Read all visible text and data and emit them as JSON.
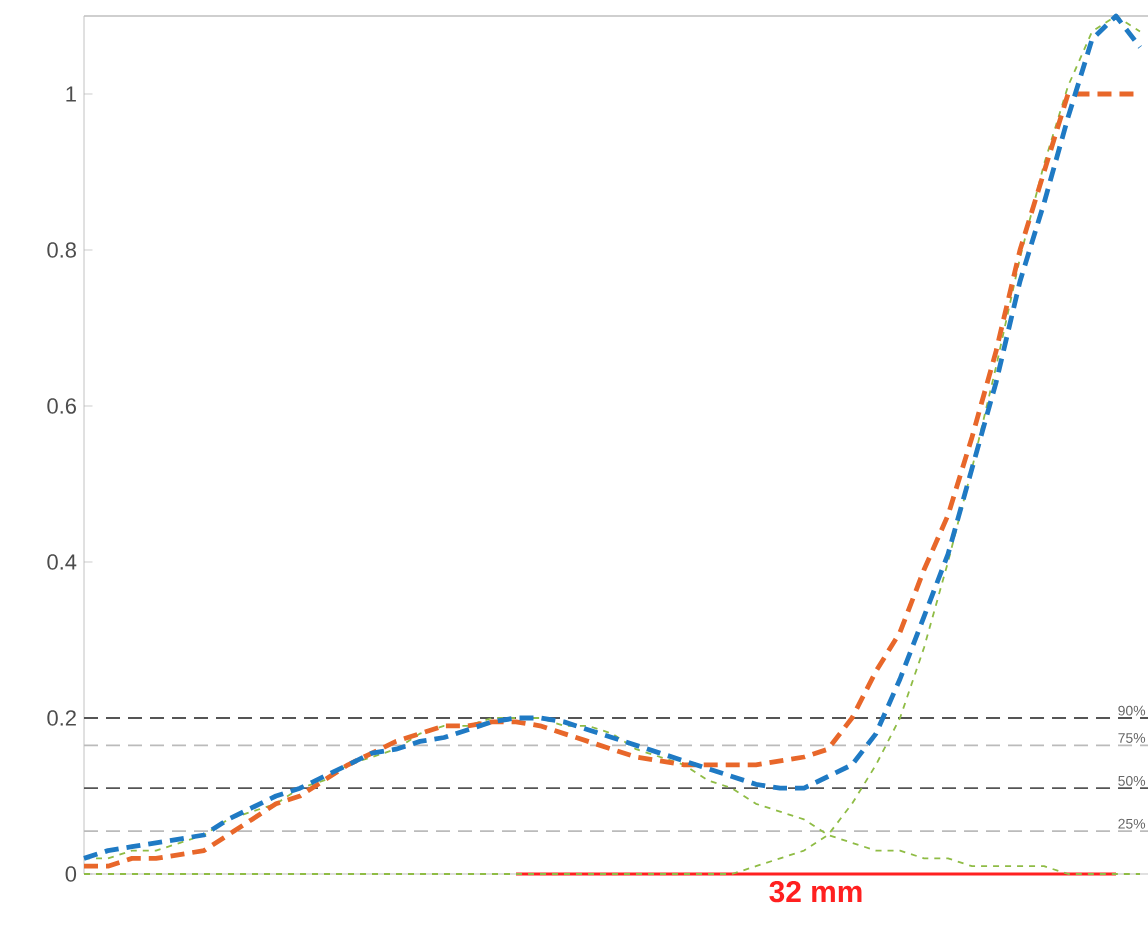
{
  "chart_data": {
    "type": "line",
    "categories": [
      null,
      null,
      null,
      null,
      null,
      null,
      null,
      null,
      null,
      null,
      null,
      null,
      null,
      null,
      null,
      null,
      null,
      null,
      null,
      null,
      null,
      null,
      null,
      null,
      null,
      null,
      null,
      null,
      null,
      null,
      null,
      null,
      null,
      null,
      null,
      null,
      null,
      null,
      null,
      null,
      null,
      null,
      null,
      null,
      null
    ],
    "series": [
      {
        "color": "#ff2020",
        "line_style": "solid",
        "values": [
          null,
          null,
          null,
          null,
          null,
          null,
          null,
          null,
          null,
          null,
          null,
          null,
          null,
          null,
          null,
          null,
          null,
          null,
          0,
          0,
          0,
          0,
          0,
          0,
          0,
          0,
          0,
          0,
          0,
          0,
          0,
          0,
          0,
          0,
          0,
          0,
          0,
          0,
          0,
          0,
          0,
          0,
          0,
          0,
          null
        ]
      },
      {
        "color": "#8fbc45",
        "line_style": "dotted",
        "values": [
          0.02,
          0.02,
          0.03,
          0.03,
          0.04,
          0.05,
          0.07,
          0.08,
          0.09,
          0.11,
          0.12,
          0.14,
          0.15,
          0.16,
          0.18,
          0.19,
          0.19,
          0.2,
          0.2,
          0.2,
          0.19,
          0.19,
          0.18,
          0.16,
          0.15,
          0.14,
          0.12,
          0.11,
          0.09,
          0.08,
          0.07,
          0.05,
          0.04,
          0.03,
          0.03,
          0.02,
          0.02,
          0.01,
          0.01,
          0.01,
          0.01,
          0,
          0,
          0,
          0
        ]
      },
      {
        "color": "#8fbc45",
        "line_style": "dotted",
        "values": [
          0,
          0,
          0,
          0,
          0,
          0,
          0,
          0,
          0,
          0,
          0,
          0,
          0,
          0,
          0,
          0,
          0,
          0,
          0,
          0,
          0,
          0,
          0,
          0,
          0,
          0,
          0,
          0,
          0.01,
          0.02,
          0.03,
          0.05,
          0.09,
          0.14,
          0.2,
          0.29,
          0.4,
          0.52,
          0.65,
          0.79,
          0.91,
          1.01,
          1.08,
          1.1,
          1.08
        ]
      },
      {
        "color": "#e8672a",
        "line_style": "dashed",
        "values": [
          0.01,
          0.01,
          0.02,
          0.02,
          0.025,
          0.03,
          0.05,
          0.07,
          0.09,
          0.1,
          0.12,
          0.14,
          0.155,
          0.17,
          0.18,
          0.19,
          0.19,
          0.195,
          0.195,
          0.19,
          0.18,
          0.17,
          0.16,
          0.15,
          0.145,
          0.14,
          0.14,
          0.14,
          0.14,
          0.145,
          0.15,
          0.16,
          0.2,
          0.26,
          0.31,
          0.39,
          0.46,
          0.56,
          0.67,
          0.8,
          0.9,
          1.0,
          1.0,
          1.0,
          1.0
        ]
      },
      {
        "color": "#1f7ac4",
        "line_style": "dashed",
        "values": [
          0.02,
          0.03,
          0.035,
          0.04,
          0.045,
          0.05,
          0.07,
          0.085,
          0.1,
          0.11,
          0.125,
          0.14,
          0.155,
          0.16,
          0.17,
          0.175,
          0.185,
          0.195,
          0.2,
          0.2,
          0.195,
          0.185,
          0.175,
          0.165,
          0.155,
          0.145,
          0.135,
          0.125,
          0.115,
          0.11,
          0.11,
          0.125,
          0.14,
          0.18,
          0.25,
          0.33,
          0.41,
          0.52,
          0.63,
          0.76,
          0.86,
          0.97,
          1.07,
          1.1,
          1.06
        ]
      }
    ],
    "ylim": [
      0,
      1.1
    ],
    "yticks": [
      0,
      0.2,
      0.4,
      0.6,
      0.8,
      1
    ],
    "ref_lines": [
      {
        "axis": "y",
        "value": 0.2,
        "color": "#555555",
        "line_style": "dashed"
      },
      {
        "axis": "y",
        "value": 0.165,
        "color": "#bbbbbb",
        "line_style": "dashed"
      },
      {
        "axis": "y",
        "value": 0.11,
        "color": "#555555",
        "line_style": "dashed"
      },
      {
        "axis": "y",
        "value": 0.055,
        "color": "#bbbbbb",
        "line_style": "dashed"
      }
    ],
    "annotations": [
      "32 mm",
      {
        "text": "90%",
        "y": 0.2
      },
      {
        "text": "75%",
        "y": 0.165
      },
      {
        "text": "50%",
        "y": 0.11
      },
      {
        "text": "25%",
        "y": 0.055
      }
    ],
    "grid": false,
    "tick_labels": "y"
  }
}
